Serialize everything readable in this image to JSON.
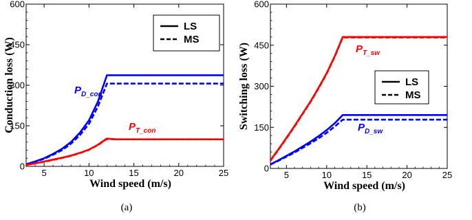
{
  "chart_data": [
    {
      "type": "line",
      "panel_label": "(a)",
      "xlabel": "Wind speed (m/s)",
      "ylabel": "Conduction loss (W)",
      "xlim": [
        3,
        25
      ],
      "ylim": [
        0,
        600
      ],
      "x_ticks": [
        5,
        10,
        15,
        20,
        25
      ],
      "y_ticks": [
        0,
        150,
        300,
        450,
        600
      ],
      "x_tick_labels": [
        "5",
        "10",
        "15",
        "20",
        "25"
      ],
      "y_tick_labels": [
        "0",
        "150",
        "300",
        "450",
        "600"
      ],
      "grid": false,
      "legend": {
        "position": "top-right",
        "entries": [
          {
            "label": "LS",
            "style": "solid"
          },
          {
            "label": "MS",
            "style": "dashed"
          }
        ]
      },
      "annotations": [
        {
          "base": "P",
          "sub": "D_con",
          "color": "#0000ff"
        },
        {
          "base": "P",
          "sub": "T_con",
          "color": "#ff0000"
        }
      ],
      "series": [
        {
          "group": "P_D_con",
          "legend": "LS",
          "color": "#0000ff",
          "dash": "solid",
          "x": [
            3,
            4,
            5,
            6,
            7,
            8,
            9,
            10,
            11,
            12,
            13,
            15,
            20,
            25
          ],
          "y": [
            8,
            18,
            30,
            46,
            65,
            90,
            125,
            170,
            240,
            337,
            337,
            337,
            337,
            337
          ]
        },
        {
          "group": "P_D_con",
          "legend": "MS",
          "color": "#0000ff",
          "dash": "dashed",
          "x": [
            3,
            4,
            5,
            6,
            7,
            8,
            9,
            10,
            11,
            12,
            13,
            15,
            20,
            25
          ],
          "y": [
            7,
            17,
            28,
            43,
            60,
            84,
            116,
            157,
            222,
            306,
            306,
            306,
            306,
            306
          ]
        },
        {
          "group": "P_T_con",
          "legend": "LS",
          "color": "#ff0000",
          "dash": "solid",
          "x": [
            3,
            4,
            5,
            6,
            7,
            8,
            9,
            10,
            11,
            12,
            13,
            15,
            20,
            25
          ],
          "y": [
            5,
            11,
            18,
            25,
            32,
            40,
            50,
            62,
            80,
            103,
            100,
            100,
            100,
            100
          ]
        },
        {
          "group": "P_T_con",
          "legend": "MS",
          "color": "#ff0000",
          "dash": "dashed",
          "x": [
            3,
            4,
            5,
            6,
            7,
            8,
            9,
            10,
            11,
            12,
            13,
            15,
            20,
            25
          ],
          "y": [
            5,
            11,
            17,
            24,
            31,
            39,
            49,
            61,
            79,
            101,
            100,
            100,
            100,
            100
          ]
        }
      ]
    },
    {
      "type": "line",
      "panel_label": "(b)",
      "xlabel": "Wind speed (m/s)",
      "ylabel": "Switching loss (W)",
      "xlim": [
        3,
        25
      ],
      "ylim": [
        0,
        600
      ],
      "x_ticks": [
        5,
        10,
        15,
        20,
        25
      ],
      "y_ticks": [
        0,
        150,
        300,
        450,
        600
      ],
      "x_tick_labels": [
        "5",
        "10",
        "15",
        "20",
        "25"
      ],
      "y_tick_labels": [
        "0",
        "150",
        "300",
        "450",
        "600"
      ],
      "grid": false,
      "legend": {
        "position": "center-right",
        "entries": [
          {
            "label": "LS",
            "style": "solid"
          },
          {
            "label": "MS",
            "style": "dashed"
          }
        ]
      },
      "annotations": [
        {
          "base": "P",
          "sub": "T_sw",
          "color": "#ff0000"
        },
        {
          "base": "P",
          "sub": "D_sw",
          "color": "#0000ff"
        }
      ],
      "series": [
        {
          "group": "P_T_sw",
          "legend": "LS",
          "color": "#ff0000",
          "dash": "solid",
          "x": [
            3,
            4,
            5,
            6,
            7,
            8,
            9,
            10,
            11,
            12,
            13,
            15,
            20,
            25
          ],
          "y": [
            30,
            70,
            112,
            155,
            200,
            245,
            295,
            348,
            410,
            480,
            480,
            480,
            480,
            480
          ]
        },
        {
          "group": "P_T_sw",
          "legend": "MS",
          "color": "#ff0000",
          "dash": "dashed",
          "x": [
            3,
            4,
            5,
            6,
            7,
            8,
            9,
            10,
            11,
            12,
            13,
            15,
            20,
            25
          ],
          "y": [
            28,
            68,
            110,
            153,
            198,
            243,
            293,
            346,
            408,
            478,
            478,
            478,
            478,
            478
          ]
        },
        {
          "group": "P_D_sw",
          "legend": "LS",
          "color": "#0000ff",
          "dash": "solid",
          "x": [
            3,
            4,
            5,
            6,
            7,
            8,
            9,
            10,
            11,
            12,
            13,
            15,
            20,
            25
          ],
          "y": [
            15,
            30,
            46,
            62,
            80,
            98,
            118,
            140,
            165,
            195,
            195,
            195,
            195,
            195
          ]
        },
        {
          "group": "P_D_sw",
          "legend": "MS",
          "color": "#0000ff",
          "dash": "dashed",
          "x": [
            3,
            4,
            5,
            6,
            7,
            8,
            9,
            10,
            11,
            12,
            13,
            15,
            20,
            25
          ],
          "y": [
            14,
            28,
            43,
            58,
            75,
            92,
            110,
            130,
            153,
            178,
            178,
            178,
            178,
            178
          ]
        }
      ]
    }
  ]
}
